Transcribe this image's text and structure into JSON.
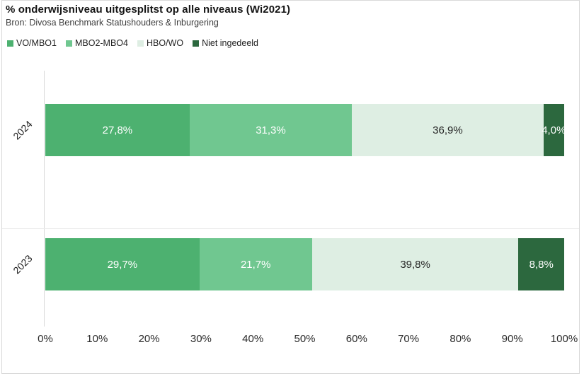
{
  "chart": {
    "title": "% onderwijsniveau uitgesplitst op alle niveaus (Wi2021)",
    "subtitle": "Bron: Divosa Benchmark Statushouders & Inburgering"
  },
  "legend": {
    "position": "top-left",
    "entries": [
      "VO/MBO1",
      "MBO2-MBO4",
      "HBO/WO",
      "Niet ingedeeld"
    ]
  },
  "chart_data": {
    "type": "bar",
    "orientation": "horizontal_stacked",
    "title": "% onderwijsniveau uitgesplitst op alle niveaus (Wi2021)",
    "subtitle": "Bron: Divosa Benchmark Statushouders & Inburgering",
    "categories": [
      "2024",
      "2023"
    ],
    "series": [
      {
        "name": "VO/MBO1",
        "color": "#4DB170",
        "label_color": "#ffffff",
        "values": [
          27.8,
          29.7
        ]
      },
      {
        "name": "MBO2-MBO4",
        "color": "#70C790",
        "label_color": "#ffffff",
        "values": [
          31.3,
          21.7
        ]
      },
      {
        "name": "HBO/WO",
        "color": "#DEEEE3",
        "label_color": "#262626",
        "values": [
          36.9,
          39.8
        ]
      },
      {
        "name": "Niet ingedeeld",
        "color": "#2C683E",
        "label_color": "#ffffff",
        "values": [
          4.0,
          8.8
        ]
      }
    ],
    "data_labels": [
      [
        "27,8%",
        "31,3%",
        "36,9%",
        "4,0%"
      ],
      [
        "29,7%",
        "21,7%",
        "39,8%",
        "8,8%"
      ]
    ],
    "x_ticks": [
      "0%",
      "10%",
      "20%",
      "30%",
      "40%",
      "50%",
      "60%",
      "70%",
      "80%",
      "90%",
      "100%"
    ],
    "xlim": [
      0,
      100
    ],
    "grid": "axis-line-only",
    "legend_position": "top-left"
  },
  "colors": {
    "axis_line": "#d9d9d9",
    "card_border": "#d9d9d9",
    "row_separator": "#ebebeb",
    "background": "#ffffff"
  }
}
